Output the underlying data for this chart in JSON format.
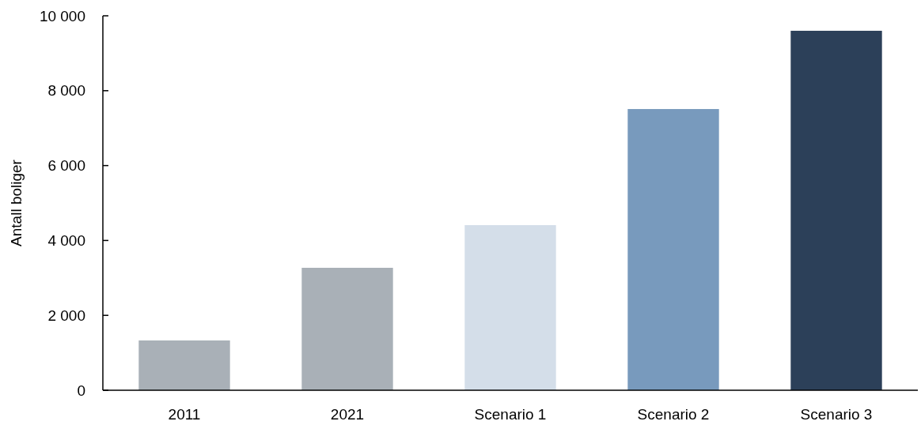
{
  "chart_data": {
    "type": "bar",
    "ylabel": "Antall boliger",
    "categories": [
      "2011",
      "2021",
      "Scenario 1",
      "Scenario 2",
      "Scenario 3"
    ],
    "values": [
      1330,
      3270,
      4410,
      7510,
      9600
    ],
    "colors": [
      "#a9b0b7",
      "#a9b0b7",
      "#d4dee9",
      "#789abd",
      "#2c4059"
    ],
    "ylim": [
      0,
      10000
    ],
    "yticks": [
      0,
      {
        "value": 2000,
        "label": "2 000"
      },
      {
        "value": 4000,
        "label": "4 000"
      },
      {
        "value": 6000,
        "label": "6 000"
      },
      {
        "value": 8000,
        "label": "8 000"
      },
      {
        "value": 10000,
        "label": "10 000"
      }
    ]
  }
}
